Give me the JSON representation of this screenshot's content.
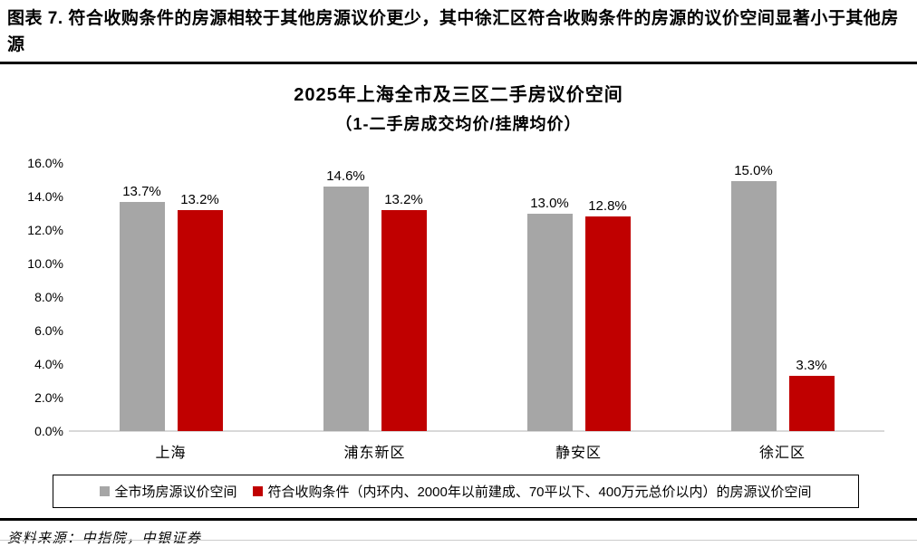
{
  "header": {
    "title": "图表 7. 符合收购条件的房源相较于其他房源议价更少，其中徐汇区符合收购条件的房源的议价空间显著小于其他房源"
  },
  "chart_data": {
    "type": "bar",
    "title": "2025年上海全市及三区二手房议价空间",
    "subtitle": "（1-二手房成交均价/挂牌均价）",
    "categories": [
      "上海",
      "浦东新区",
      "静安区",
      "徐汇区"
    ],
    "series": [
      {
        "name": "全市场房源议价空间",
        "color": "#A6A6A6",
        "values": [
          13.7,
          14.6,
          13.0,
          15.0
        ],
        "labels": [
          "13.7%",
          "14.6%",
          "13.0%",
          "15.0%"
        ]
      },
      {
        "name": "符合收购条件（内环内、2000年以前建成、70平以下、400万元总价以内）的房源议价空间",
        "color": "#C00000",
        "values": [
          13.2,
          13.2,
          12.8,
          3.3
        ],
        "labels": [
          "13.2%",
          "13.2%",
          "12.8%",
          "3.3%"
        ]
      }
    ],
    "ylim": [
      0,
      16
    ],
    "yticks": [
      "16.0%",
      "14.0%",
      "12.0%",
      "10.0%",
      "8.0%",
      "6.0%",
      "4.0%",
      "2.0%",
      "0.0%"
    ],
    "grid": false,
    "legend_position": "bottom",
    "baseline_color": "#D9D9D9"
  },
  "footer": {
    "source": "资料来源：中指院，中银证券"
  }
}
